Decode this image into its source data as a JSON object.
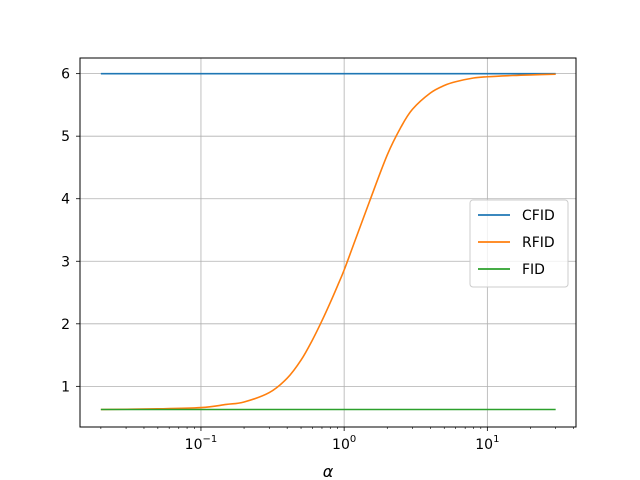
{
  "chart_data": {
    "type": "line",
    "title": "",
    "xlabel": "α",
    "ylabel": "",
    "xscale": "log",
    "xlim": [
      0.0143,
      41.6
    ],
    "ylim": [
      0.35,
      6.25
    ],
    "grid": true,
    "legend": {
      "placement": "center-right"
    },
    "x_ticks": [
      {
        "base": "10",
        "exp": "−1",
        "value": 0.1
      },
      {
        "base": "10",
        "exp": "0",
        "value": 1
      },
      {
        "base": "10",
        "exp": "1",
        "value": 10
      }
    ],
    "y_ticks": [
      {
        "label": "1",
        "value": 1
      },
      {
        "label": "2",
        "value": 2
      },
      {
        "label": "3",
        "value": 3
      },
      {
        "label": "4",
        "value": 4
      },
      {
        "label": "5",
        "value": 5
      },
      {
        "label": "6",
        "value": 6
      }
    ],
    "series": [
      {
        "name": "CFID",
        "color": "#1f77b4",
        "x": [
          0.02,
          30
        ],
        "y": [
          6.0,
          6.0
        ]
      },
      {
        "name": "RFID",
        "color": "#ff7f0e",
        "x": [
          0.02,
          0.05,
          0.1,
          0.15,
          0.2,
          0.3,
          0.4,
          0.5,
          0.6,
          0.7,
          0.8,
          0.9,
          1.0,
          1.2,
          1.5,
          2.0,
          2.5,
          3.0,
          4.0,
          5.0,
          6.0,
          8.0,
          10.0,
          15.0,
          20.0,
          30.0
        ],
        "y": [
          0.63,
          0.64,
          0.66,
          0.71,
          0.75,
          0.9,
          1.13,
          1.42,
          1.74,
          2.05,
          2.34,
          2.61,
          2.86,
          3.35,
          3.95,
          4.7,
          5.15,
          5.43,
          5.69,
          5.81,
          5.87,
          5.93,
          5.95,
          5.97,
          5.98,
          5.99
        ]
      },
      {
        "name": "FID",
        "color": "#2ca02c",
        "x": [
          0.02,
          30
        ],
        "y": [
          0.63,
          0.63
        ]
      }
    ]
  }
}
